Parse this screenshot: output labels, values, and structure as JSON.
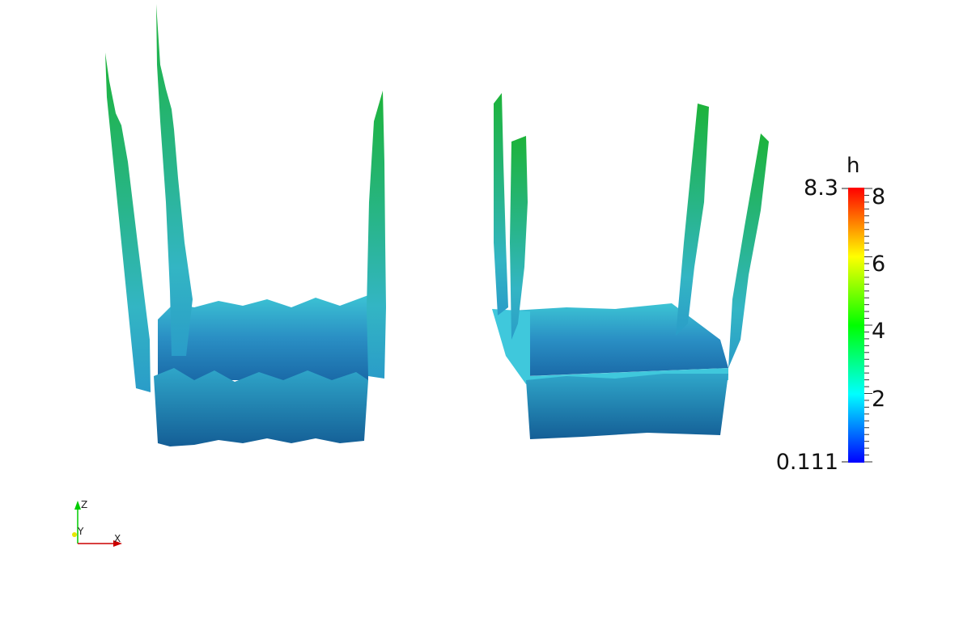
{
  "scalar_bar": {
    "title": "h",
    "range_max": "8.3",
    "range_min": "0.111",
    "ticks": [
      "8",
      "6",
      "4",
      "2"
    ],
    "colormap": [
      "#0000ff",
      "#00ffff",
      "#00ff00",
      "#ffff00",
      "#ff0000"
    ]
  },
  "orientation_axes": {
    "z_label": "Z",
    "y_label": "Y",
    "x_label": "X",
    "colors": {
      "z": "#00cc00",
      "y": "#e6e600",
      "x": "#cc0000"
    }
  }
}
